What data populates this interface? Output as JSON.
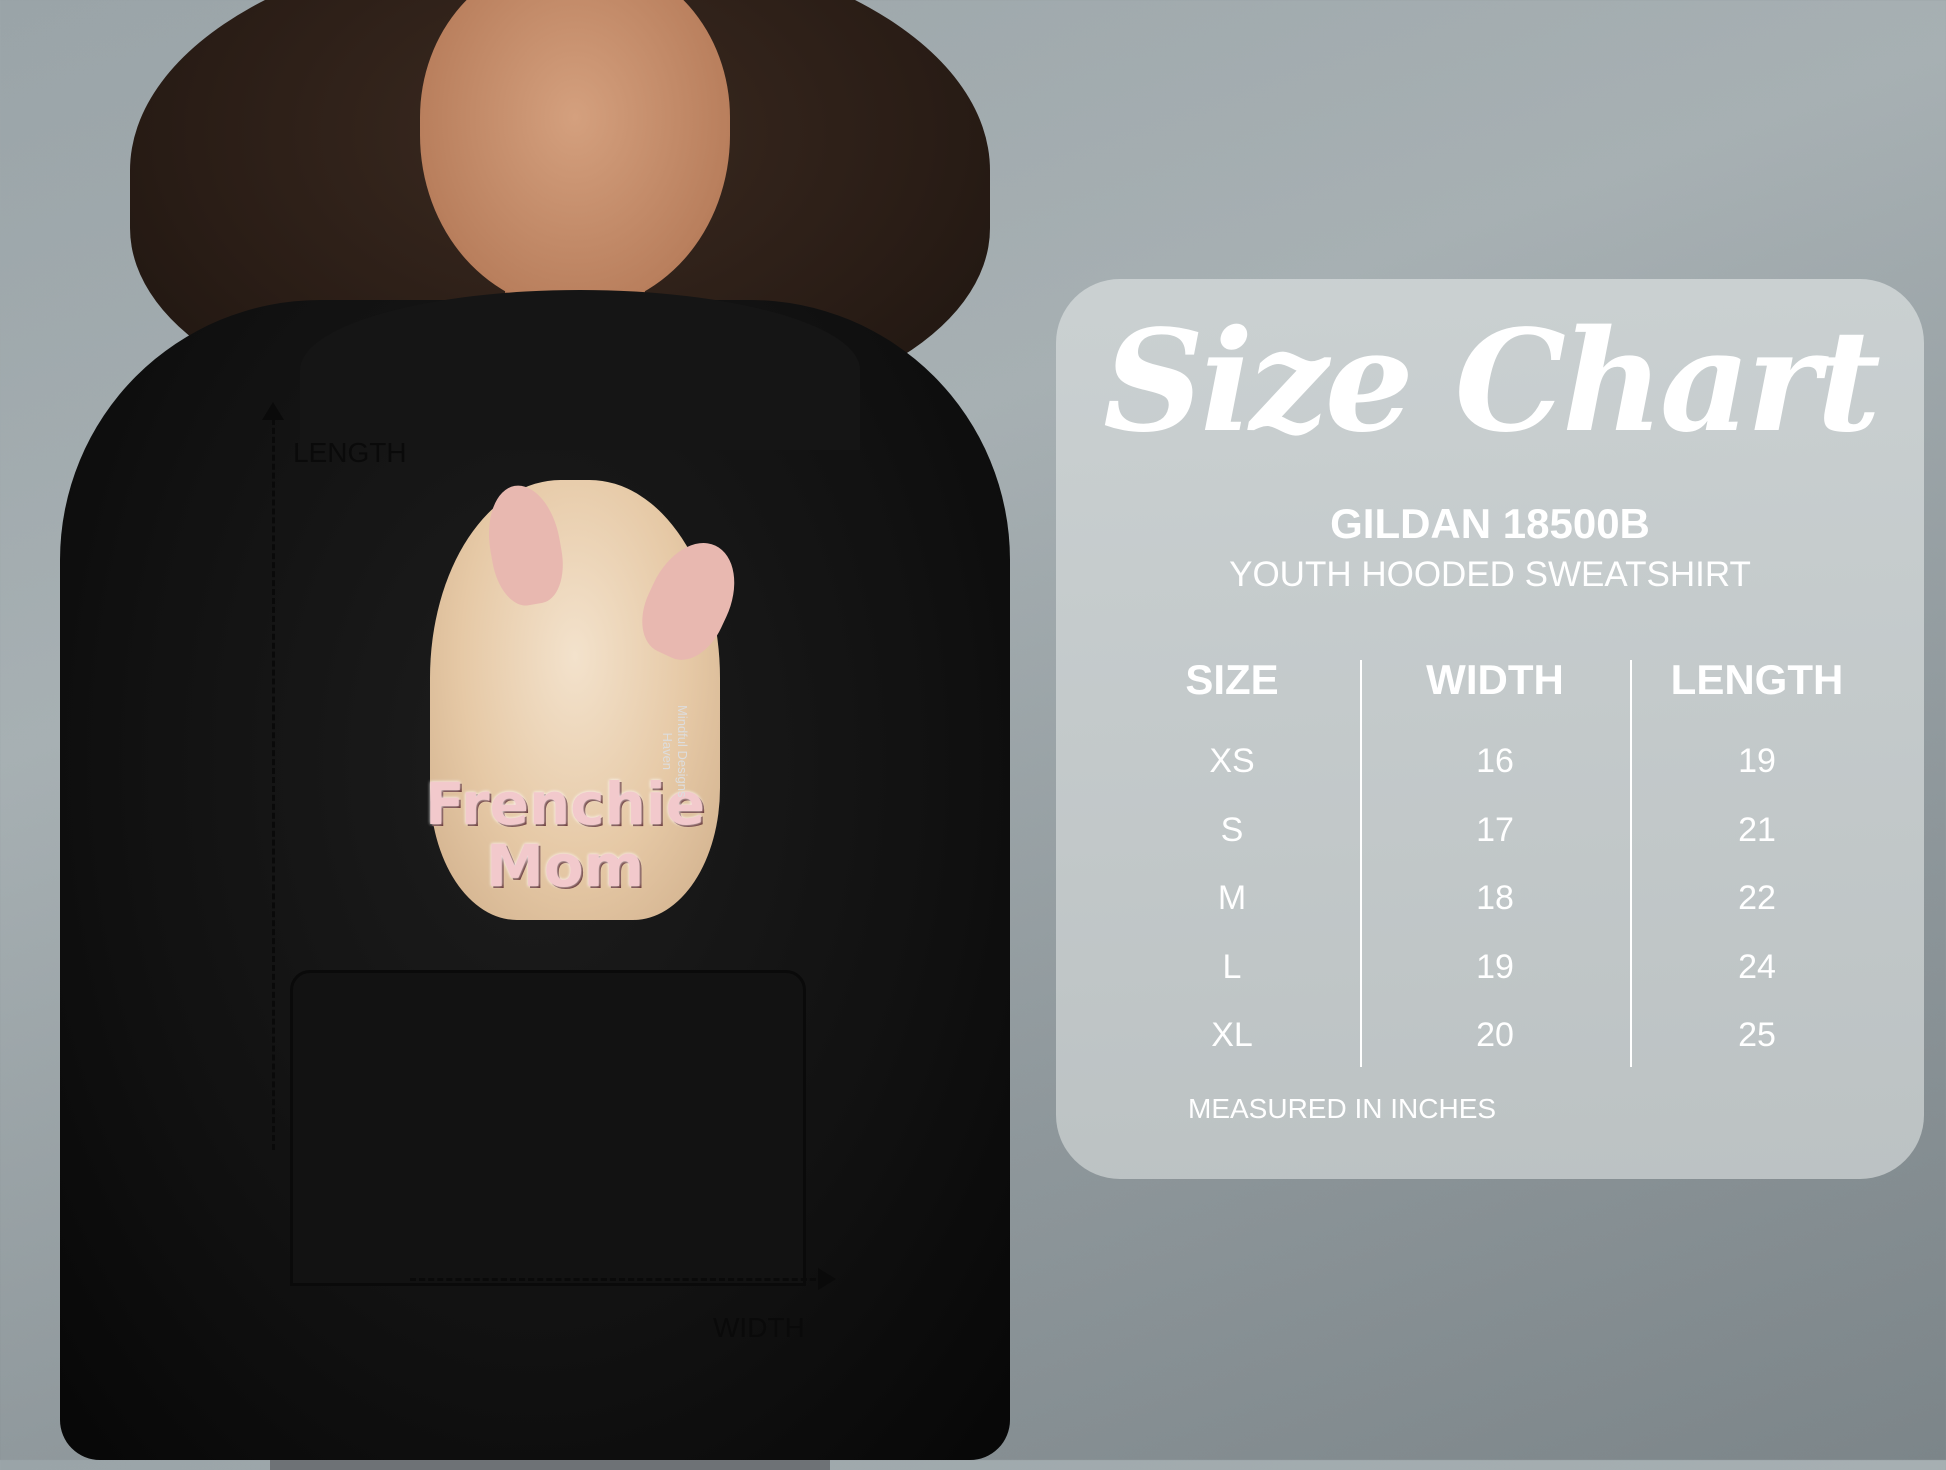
{
  "photo": {
    "measure_labels": {
      "length": "LENGTH",
      "width": "WIDTH"
    },
    "print": {
      "line1": "Frenchie",
      "line2": "Mom",
      "brand_line1": "Mindful Designs",
      "brand_line2": "Haven"
    }
  },
  "size_chart": {
    "title": "Size Chart",
    "model": "GILDAN 18500B",
    "product": "YOUTH HOODED SWEATSHIRT",
    "columns": [
      "SIZE",
      "WIDTH",
      "LENGTH"
    ],
    "rows": [
      [
        "XS",
        "16",
        "19"
      ],
      [
        "S",
        "17",
        "21"
      ],
      [
        "M",
        "18",
        "22"
      ],
      [
        "L",
        "19",
        "24"
      ],
      [
        "XL",
        "20",
        "25"
      ]
    ],
    "note": "MEASURED IN INCHES"
  },
  "colors": {
    "panel": "#c6cccd",
    "text": "#ffffff",
    "hoodie": "#111111",
    "print_pink": "#f2c9cc"
  }
}
